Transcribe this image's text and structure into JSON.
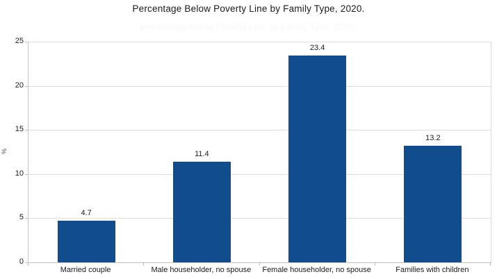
{
  "chart_data": {
    "type": "bar",
    "title": "Percentage Below Poverty Line by Family Type, 2020.",
    "categories": [
      "Married couple",
      "Male householder, no spouse",
      "Female householder, no spouse",
      "Families with children"
    ],
    "values": [
      4.7,
      11.4,
      23.4,
      13.2
    ],
    "value_labels": [
      "4.7",
      "11.4",
      "23.4",
      "13.2"
    ],
    "xlabel": "",
    "ylabel": "%",
    "ylim": [
      0,
      25
    ],
    "yticks": [
      0,
      5,
      10,
      15,
      20,
      25
    ],
    "ytick_labels": [
      "0",
      "5",
      "10",
      "15",
      "20",
      "25"
    ],
    "grid": "horizontal",
    "legend": "none",
    "bar_color": "#114C8C",
    "gridline_color": "#dddddd",
    "axis_color": "#c2c2c2",
    "background_color": "#ffffff",
    "text_color": "#1a1a1a"
  }
}
